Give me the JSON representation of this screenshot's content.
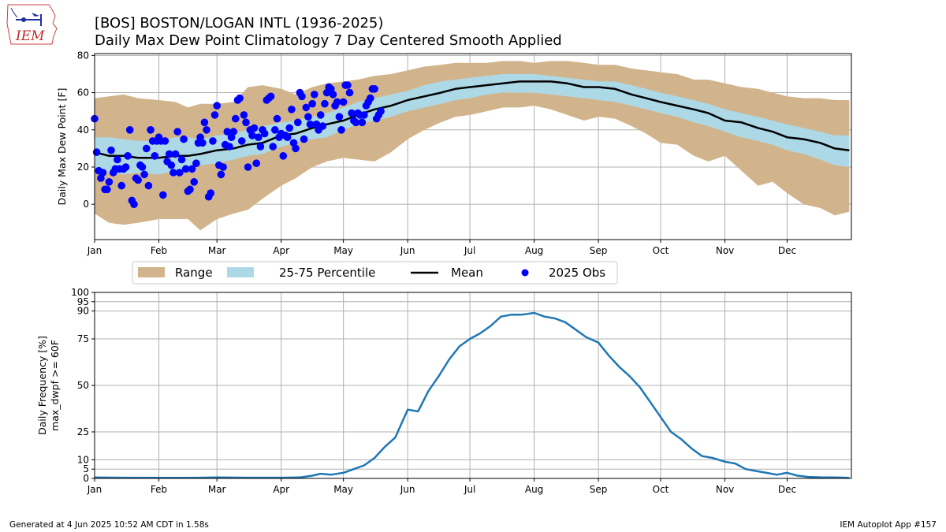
{
  "header": {
    "title_line1": "[BOS] BOSTON/LOGAN INTL (1936-2025)",
    "title_line2": "Daily Max Dew Point Climatology  7 Day Centered Smooth Applied",
    "logo_text": "IEM"
  },
  "footer": {
    "left": "Generated at 4 Jun 2025 10:52 AM CDT in 1.58s",
    "right": "IEM Autoplot App #157"
  },
  "colors": {
    "range": "#d2b48c",
    "percentile": "#add8e6",
    "mean": "#000000",
    "obs": "#0000ff",
    "frequency": "#1f77b4",
    "grid": "#b0b0b0"
  },
  "chart_data": [
    {
      "type": "area",
      "title": "Daily Max Dew Point Climatology  7 Day Centered Smooth Applied",
      "xlabel": "",
      "ylabel": "Daily Max Dew Point [F]",
      "xlim_day_of_year": [
        1,
        366
      ],
      "ylim": [
        -19,
        81
      ],
      "grid": true,
      "x_ticks": [
        {
          "label": "Jan",
          "day": 1
        },
        {
          "label": "Feb",
          "day": 32
        },
        {
          "label": "Mar",
          "day": 60
        },
        {
          "label": "Apr",
          "day": 91
        },
        {
          "label": "May",
          "day": 121
        },
        {
          "label": "Jun",
          "day": 152
        },
        {
          "label": "Jul",
          "day": 182
        },
        {
          "label": "Aug",
          "day": 213
        },
        {
          "label": "Sep",
          "day": 244
        },
        {
          "label": "Oct",
          "day": 274
        },
        {
          "label": "Nov",
          "day": 305
        },
        {
          "label": "Dec",
          "day": 335
        }
      ],
      "y_ticks": [
        0,
        20,
        40,
        60,
        80
      ],
      "legend": {
        "placement": "below",
        "entries": [
          "Range",
          "25-75 Percentile",
          "Mean",
          "2025 Obs"
        ]
      },
      "x_days": [
        1,
        8,
        15,
        22,
        32,
        40,
        46,
        52,
        60,
        68,
        75,
        82,
        91,
        98,
        106,
        113,
        121,
        128,
        136,
        144,
        152,
        160,
        168,
        175,
        182,
        190,
        198,
        206,
        213,
        221,
        229,
        237,
        244,
        252,
        260,
        267,
        274,
        282,
        290,
        297,
        305,
        313,
        321,
        328,
        335,
        343,
        351,
        358,
        365
      ],
      "series": [
        {
          "name": "Range max",
          "values": [
            57,
            58,
            59,
            57,
            56,
            55,
            52,
            54,
            54,
            55,
            63,
            64,
            62,
            59,
            63,
            65,
            66,
            67,
            69,
            70,
            72,
            74,
            75,
            76,
            76,
            76,
            77,
            77,
            76,
            77,
            77,
            76,
            75,
            75,
            73,
            72,
            71,
            70,
            67,
            67,
            65,
            63,
            62,
            60,
            58,
            57,
            57,
            56,
            56
          ]
        },
        {
          "name": "Range min",
          "values": [
            -5,
            -10,
            -11,
            -10,
            -8,
            -8,
            -8,
            -14,
            -8,
            -5,
            -3,
            3,
            10,
            14,
            20,
            23,
            25,
            24,
            23,
            28,
            35,
            40,
            44,
            47,
            48,
            50,
            52,
            52,
            53,
            51,
            48,
            45,
            47,
            46,
            42,
            38,
            33,
            32,
            26,
            23,
            26,
            18,
            10,
            12,
            6,
            0,
            -2,
            -6,
            -4
          ]
        },
        {
          "name": "25-75 Percentile high",
          "values": [
            36,
            36,
            35,
            34,
            34,
            36,
            36,
            35,
            37,
            38,
            40,
            42,
            44,
            45,
            47,
            49,
            52,
            55,
            57,
            59,
            61,
            64,
            66,
            67,
            68,
            69,
            70,
            70,
            70,
            69,
            68,
            67,
            66,
            66,
            64,
            62,
            60,
            58,
            56,
            54,
            51,
            49,
            47,
            45,
            43,
            41,
            39,
            37,
            37
          ]
        },
        {
          "name": "25-75 Percentile low",
          "values": [
            20,
            17,
            16,
            17,
            16,
            18,
            20,
            21,
            22,
            24,
            26,
            27,
            31,
            33,
            35,
            36,
            40,
            43,
            45,
            47,
            50,
            52,
            54,
            56,
            57,
            59,
            60,
            60,
            60,
            59,
            58,
            57,
            56,
            55,
            53,
            51,
            49,
            47,
            44,
            42,
            39,
            36,
            34,
            32,
            29,
            27,
            24,
            21,
            20
          ]
        },
        {
          "name": "Mean",
          "values": [
            28,
            26,
            26,
            25,
            25,
            26,
            26,
            27,
            29,
            30,
            32,
            33,
            37,
            38,
            41,
            43,
            45,
            48,
            51,
            53,
            56,
            58,
            60,
            62,
            63,
            64,
            65,
            66,
            66,
            66,
            65,
            63,
            63,
            62,
            59,
            57,
            55,
            53,
            51,
            49,
            45,
            44,
            41,
            39,
            36,
            35,
            33,
            30,
            29
          ]
        }
      ],
      "obs_2025": {
        "name": "2025 Obs",
        "points": [
          [
            1,
            46
          ],
          [
            2,
            28
          ],
          [
            3,
            18
          ],
          [
            4,
            14
          ],
          [
            5,
            17
          ],
          [
            6,
            8
          ],
          [
            7,
            8
          ],
          [
            8,
            12
          ],
          [
            9,
            29
          ],
          [
            10,
            17
          ],
          [
            11,
            19
          ],
          [
            12,
            24
          ],
          [
            13,
            19
          ],
          [
            14,
            10
          ],
          [
            15,
            19
          ],
          [
            16,
            20
          ],
          [
            17,
            26
          ],
          [
            18,
            40
          ],
          [
            19,
            2
          ],
          [
            20,
            0
          ],
          [
            21,
            14
          ],
          [
            22,
            13
          ],
          [
            23,
            21
          ],
          [
            24,
            20
          ],
          [
            25,
            16
          ],
          [
            26,
            30
          ],
          [
            27,
            10
          ],
          [
            28,
            40
          ],
          [
            29,
            34
          ],
          [
            30,
            26
          ],
          [
            31,
            34
          ],
          [
            32,
            36
          ],
          [
            33,
            34
          ],
          [
            34,
            5
          ],
          [
            35,
            34
          ],
          [
            36,
            23
          ],
          [
            37,
            27
          ],
          [
            38,
            21
          ],
          [
            39,
            17
          ],
          [
            40,
            27
          ],
          [
            41,
            39
          ],
          [
            42,
            17
          ],
          [
            43,
            24
          ],
          [
            44,
            35
          ],
          [
            45,
            19
          ],
          [
            46,
            7
          ],
          [
            47,
            8
          ],
          [
            48,
            19
          ],
          [
            49,
            12
          ],
          [
            50,
            22
          ],
          [
            51,
            33
          ],
          [
            52,
            36
          ],
          [
            53,
            33
          ],
          [
            54,
            44
          ],
          [
            55,
            40
          ],
          [
            56,
            4
          ],
          [
            57,
            6
          ],
          [
            58,
            34
          ],
          [
            59,
            48
          ],
          [
            60,
            53
          ],
          [
            61,
            21
          ],
          [
            62,
            16
          ],
          [
            63,
            20
          ],
          [
            64,
            32
          ],
          [
            65,
            39
          ],
          [
            66,
            31
          ],
          [
            67,
            36
          ],
          [
            68,
            39
          ],
          [
            69,
            46
          ],
          [
            70,
            56
          ],
          [
            71,
            57
          ],
          [
            72,
            34
          ],
          [
            73,
            48
          ],
          [
            74,
            44
          ],
          [
            75,
            20
          ],
          [
            76,
            40
          ],
          [
            77,
            37
          ],
          [
            78,
            41
          ],
          [
            79,
            22
          ],
          [
            80,
            36
          ],
          [
            81,
            31
          ],
          [
            82,
            40
          ],
          [
            83,
            38
          ],
          [
            84,
            56
          ],
          [
            85,
            57
          ],
          [
            86,
            58
          ],
          [
            87,
            31
          ],
          [
            88,
            40
          ],
          [
            89,
            46
          ],
          [
            90,
            36
          ],
          [
            91,
            38
          ],
          [
            92,
            26
          ],
          [
            93,
            37
          ],
          [
            94,
            36
          ],
          [
            95,
            41
          ],
          [
            96,
            51
          ],
          [
            97,
            33
          ],
          [
            98,
            30
          ],
          [
            99,
            44
          ],
          [
            100,
            60
          ],
          [
            101,
            58
          ],
          [
            102,
            35
          ],
          [
            103,
            52
          ],
          [
            104,
            47
          ],
          [
            105,
            43
          ],
          [
            106,
            54
          ],
          [
            107,
            59
          ],
          [
            108,
            43
          ],
          [
            109,
            40
          ],
          [
            110,
            48
          ],
          [
            111,
            42
          ],
          [
            112,
            54
          ],
          [
            113,
            60
          ],
          [
            114,
            63
          ],
          [
            115,
            62
          ],
          [
            116,
            59
          ],
          [
            117,
            53
          ],
          [
            118,
            55
          ],
          [
            119,
            47
          ],
          [
            120,
            40
          ],
          [
            121,
            55
          ],
          [
            122,
            64
          ],
          [
            123,
            64
          ],
          [
            124,
            60
          ],
          [
            125,
            49
          ],
          [
            126,
            45
          ],
          [
            127,
            44
          ],
          [
            128,
            49
          ],
          [
            129,
            48
          ],
          [
            130,
            44
          ],
          [
            131,
            48
          ],
          [
            132,
            53
          ],
          [
            133,
            55
          ],
          [
            134,
            57
          ],
          [
            135,
            62
          ],
          [
            136,
            62
          ],
          [
            137,
            46
          ],
          [
            138,
            48
          ],
          [
            139,
            50
          ]
        ]
      }
    },
    {
      "type": "line",
      "title": "",
      "xlabel": "",
      "ylabel": "Daily Frequency [%]\nmax_dwpf >= 60F",
      "ylabel_lines": [
        "Daily Frequency [%]",
        "max_dwpf >= 60F"
      ],
      "xlim_day_of_year": [
        1,
        366
      ],
      "ylim": [
        0,
        100
      ],
      "grid": true,
      "y_ticks": [
        0,
        5,
        10,
        25,
        50,
        75,
        90,
        95,
        100
      ],
      "x_ticks": [
        {
          "label": "Jan",
          "day": 1
        },
        {
          "label": "Feb",
          "day": 32
        },
        {
          "label": "Mar",
          "day": 60
        },
        {
          "label": "Apr",
          "day": 91
        },
        {
          "label": "May",
          "day": 121
        },
        {
          "label": "Jun",
          "day": 152
        },
        {
          "label": "Jul",
          "day": 182
        },
        {
          "label": "Aug",
          "day": 213
        },
        {
          "label": "Sep",
          "day": 244
        },
        {
          "label": "Oct",
          "day": 274
        },
        {
          "label": "Nov",
          "day": 305
        },
        {
          "label": "Dec",
          "day": 335
        }
      ],
      "x_days": [
        1,
        15,
        32,
        46,
        60,
        75,
        91,
        100,
        106,
        110,
        115,
        121,
        126,
        131,
        136,
        141,
        146,
        152,
        157,
        162,
        167,
        172,
        177,
        182,
        187,
        192,
        197,
        202,
        207,
        213,
        218,
        223,
        228,
        233,
        238,
        244,
        249,
        254,
        259,
        264,
        269,
        274,
        279,
        284,
        289,
        294,
        299,
        305,
        310,
        315,
        320,
        325,
        330,
        335,
        340,
        345,
        352,
        358,
        365
      ],
      "series": [
        {
          "name": "Frequency",
          "values": [
            0.5,
            0.4,
            0.3,
            0.3,
            0.5,
            0.4,
            0.4,
            0.5,
            1.5,
            2.5,
            2,
            3,
            5,
            7,
            11,
            17,
            22,
            37,
            36,
            47,
            55,
            64,
            71,
            75,
            78,
            82,
            87,
            88,
            88,
            89,
            87,
            86,
            84,
            80,
            76,
            73,
            66,
            60,
            55,
            49,
            41,
            33,
            25,
            21,
            16,
            12,
            11,
            9,
            8,
            5,
            4,
            3,
            2,
            3,
            1.5,
            0.8,
            0.5,
            0.5,
            0.3
          ]
        }
      ]
    }
  ]
}
